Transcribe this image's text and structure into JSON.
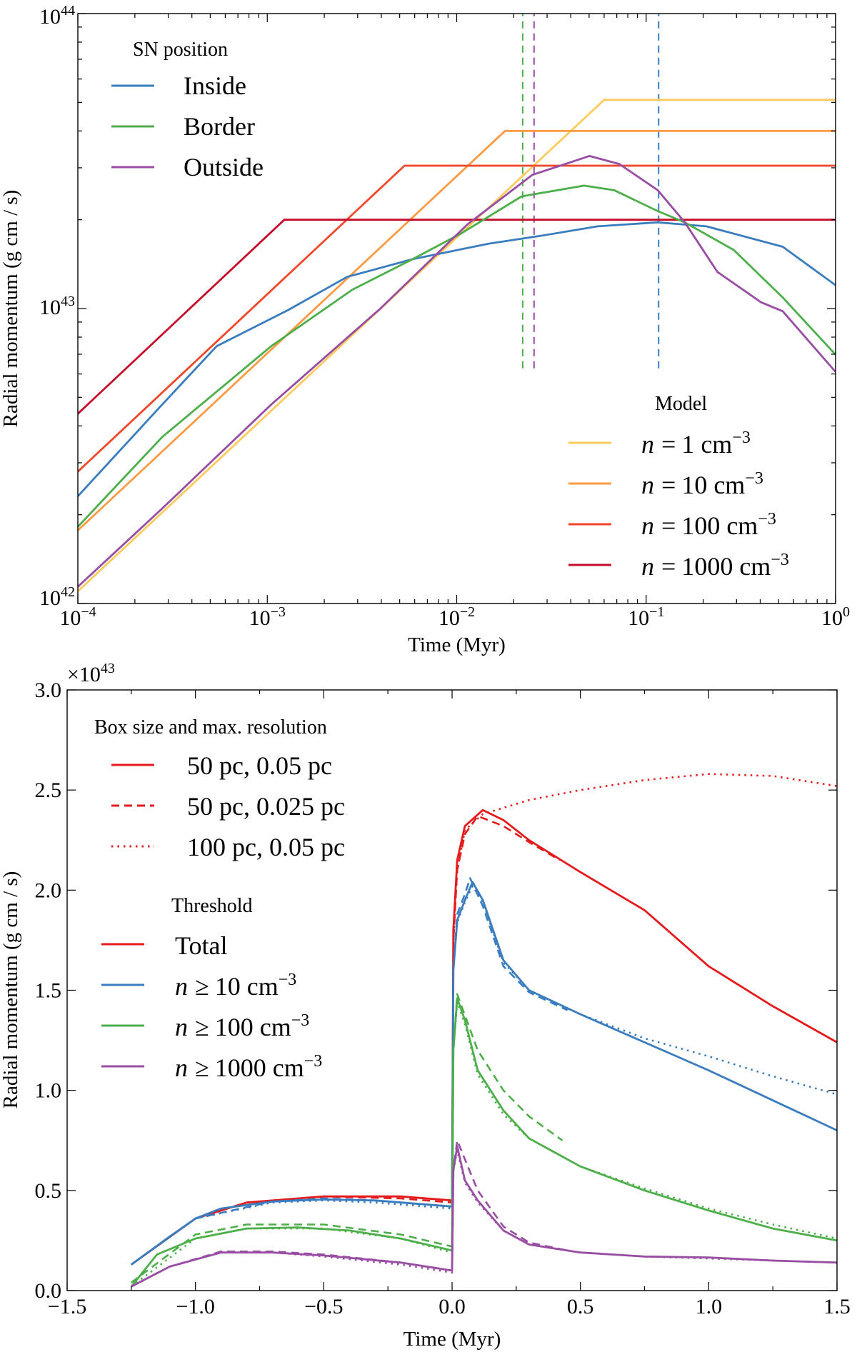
{
  "chart_data": [
    {
      "type": "line",
      "xscale": "log",
      "yscale": "log",
      "xlim": [
        0.0001,
        1
      ],
      "ylim": [
        1e+42,
        1e+44
      ],
      "xlabel": "Time (Myr)",
      "ylabel": "Radial momentum (g cm / s)",
      "x_ticks": [
        {
          "base": "10",
          "exp": "−4",
          "v": 0.0001
        },
        {
          "base": "10",
          "exp": "−3",
          "v": 0.001
        },
        {
          "base": "10",
          "exp": "−2",
          "v": 0.01
        },
        {
          "base": "10",
          "exp": "−1",
          "v": 0.1
        },
        {
          "base": "10",
          "exp": "0",
          "v": 1
        }
      ],
      "y_ticks": [
        {
          "base": "10",
          "exp": "42",
          "v": 1e+42
        },
        {
          "base": "10",
          "exp": "43",
          "v": 1e+43
        },
        {
          "base": "10",
          "exp": "44",
          "v": 1e+44
        }
      ],
      "grid": false,
      "legends": [
        {
          "title": "SN position",
          "placement": "top-left",
          "entries": [
            {
              "label": "Inside",
              "color": "#3a7dbf"
            },
            {
              "label": "Border",
              "color": "#4daf4a"
            },
            {
              "label": "Outside",
              "color": "#984ea3"
            }
          ]
        },
        {
          "title": "Model",
          "placement": "bottom-right",
          "entries": [
            {
              "var": "n",
              "rel": "=",
              "text": "1 cm",
              "sup": "−3",
              "color": "#fecb5c"
            },
            {
              "var": "n",
              "rel": "=",
              "text": "10 cm",
              "sup": "−3",
              "color": "#fd9a44"
            },
            {
              "var": "n",
              "rel": "=",
              "text": "100 cm",
              "sup": "−3",
              "color": "#f0472a"
            },
            {
              "var": "n",
              "rel": "=",
              "text": "1000 cm",
              "sup": "−3",
              "color": "#c50c2a"
            }
          ]
        }
      ],
      "series": [
        {
          "name": "n = 1 cm−3",
          "color": "#fecb5c",
          "style": "solid",
          "x": [
            0.0001,
            0.06,
            1
          ],
          "y": [
            1.1e+42,
            5.1e+43,
            5.1e+43
          ]
        },
        {
          "name": "n = 10 cm−3",
          "color": "#fd9a44",
          "style": "solid",
          "x": [
            0.0001,
            0.018,
            1
          ],
          "y": [
            1.77e+42,
            4e+43,
            4e+43
          ]
        },
        {
          "name": "n = 100 cm−3",
          "color": "#f0472a",
          "style": "solid",
          "x": [
            0.0001,
            0.0053,
            1
          ],
          "y": [
            2.8e+42,
            3.05e+43,
            3.05e+43
          ]
        },
        {
          "name": "n = 1000 cm−3",
          "color": "#c50c2a",
          "style": "solid",
          "x": [
            0.0001,
            0.00123,
            1
          ],
          "y": [
            4.4e+42,
            2e+43,
            2e+43
          ]
        },
        {
          "name": "Inside",
          "color": "#3a7dbf",
          "style": "solid",
          "x": [
            0.0001,
            0.000279,
            0.000541,
            0.00128,
            0.00264,
            0.00585,
            0.0148,
            0.0286,
            0.0555,
            0.115,
            0.208,
            0.526,
            1
          ],
          "y": [
            2.31e+42,
            4.73e+42,
            7.46e+42,
            9.86e+42,
            1.28e+43,
            1.47e+43,
            1.66e+43,
            1.77e+43,
            1.9e+43,
            1.96e+43,
            1.9e+43,
            1.62e+43,
            1.2e+43
          ]
        },
        {
          "name": "Border",
          "color": "#4daf4a",
          "style": "solid",
          "x": [
            0.0001,
            0.000279,
            0.00105,
            0.00282,
            0.00585,
            0.0106,
            0.022,
            0.047,
            0.0676,
            0.115,
            0.16,
            0.29,
            0.526,
            1
          ],
          "y": [
            1.82e+42,
            3.67e+42,
            7.46e+42,
            1.16e+43,
            1.47e+43,
            1.8e+43,
            2.4e+43,
            2.61e+43,
            2.52e+43,
            2.14e+43,
            1.96e+43,
            1.58e+43,
            1.09e+43,
            6.98e+42
          ]
        },
        {
          "name": "Outside",
          "color": "#984ea3",
          "style": "solid",
          "x": [
            0.0001,
            0.000279,
            0.00105,
            0.00394,
            0.0114,
            0.0251,
            0.0502,
            0.0721,
            0.115,
            0.16,
            0.238,
            0.404,
            0.526,
            1
          ],
          "y": [
            1.14e+42,
            2.1e+42,
            4.73e+42,
            9.98e+42,
            1.93e+43,
            2.84e+43,
            3.29e+43,
            3.09e+43,
            2.52e+43,
            1.96e+43,
            1.33e+43,
            1.05e+43,
            9.79e+42,
            6.1e+42
          ]
        }
      ],
      "vlines": [
        {
          "x": 0.0223,
          "color": "#4daf4a",
          "style": "dashed",
          "y_from": 6.27e+42,
          "y_to": 1e+44
        },
        {
          "x": 0.0256,
          "color": "#984ea3",
          "style": "dashed",
          "y_from": 6.27e+42,
          "y_to": 1e+44
        },
        {
          "x": 0.1164,
          "color": "#3a7dbf",
          "style": "dashed",
          "y_from": 6.27e+42,
          "y_to": 1e+44
        }
      ]
    },
    {
      "type": "line",
      "xlim": [
        -1.5,
        1.5
      ],
      "ylim": [
        0,
        3.0
      ],
      "xlabel": "Time (Myr)",
      "ylabel": "Radial momentum (g cm / s)",
      "y_multiplier": {
        "prefix": "×10",
        "exp": "43"
      },
      "x_ticks": [
        "−1.5",
        "−1.0",
        "−0.5",
        "0.0",
        "0.5",
        "1.0",
        "1.5"
      ],
      "x_tick_values": [
        -1.5,
        -1.0,
        -0.5,
        0,
        0.5,
        1.0,
        1.5
      ],
      "y_ticks": [
        "0.0",
        "0.5",
        "1.0",
        "1.5",
        "2.0",
        "2.5",
        "3.0"
      ],
      "y_tick_values": [
        0,
        0.5,
        1.0,
        1.5,
        2.0,
        2.5,
        3.0
      ],
      "grid": false,
      "legends": [
        {
          "title": "Box size and max. resolution",
          "placement": "top-left",
          "entries": [
            {
              "label": "50 pc, 0.05 pc",
              "style": "solid",
              "color": "#e41a1c"
            },
            {
              "label": "50 pc, 0.025 pc",
              "style": "dashed",
              "color": "#e41a1c"
            },
            {
              "label": "100 pc, 0.05 pc",
              "style": "dotted",
              "color": "#e41a1c"
            }
          ]
        },
        {
          "title": "Threshold",
          "placement": "left",
          "entries": [
            {
              "text": "Total",
              "color": "#e41a1c"
            },
            {
              "var": "n",
              "rel": "≥",
              "text": "10 cm",
              "sup": "−3",
              "color": "#3a7dbf"
            },
            {
              "var": "n",
              "rel": "≥",
              "text": "100 cm",
              "sup": "−3",
              "color": "#4daf4a"
            },
            {
              "var": "n",
              "rel": "≥",
              "text": "1000 cm",
              "sup": "−3",
              "color": "#984ea3"
            }
          ]
        }
      ],
      "series": [
        {
          "name": "Total, 50 pc, 0.05 pc",
          "color": "#e41a1c",
          "style": "solid",
          "x": [
            -1.25,
            -1.0,
            -0.8,
            -0.5,
            -0.2,
            0,
            0.005,
            0.02,
            0.05,
            0.12,
            0.2,
            0.3,
            0.5,
            0.75,
            1.0,
            1.25,
            1.5
          ],
          "y": [
            0.13,
            0.36,
            0.44,
            0.47,
            0.47,
            0.45,
            1.8,
            2.15,
            2.32,
            2.4,
            2.35,
            2.25,
            2.09,
            1.9,
            1.62,
            1.42,
            1.24
          ]
        },
        {
          "name": "Total, 50 pc, 0.025 pc",
          "color": "#e41a1c",
          "style": "dashed",
          "x": [
            -1.25,
            -1.0,
            -0.8,
            -0.5,
            -0.2,
            0,
            0.005,
            0.02,
            0.05,
            0.1,
            0.2,
            0.3,
            0.42
          ],
          "y": [
            0.13,
            0.36,
            0.44,
            0.47,
            0.46,
            0.44,
            1.75,
            2.1,
            2.28,
            2.37,
            2.32,
            2.24,
            2.15
          ]
        },
        {
          "name": "Total, 100 pc, 0.05 pc",
          "color": "#e41a1c",
          "style": "dotted",
          "x": [
            0.005,
            0.02,
            0.05,
            0.12,
            0.3,
            0.5,
            0.75,
            1.0,
            1.25,
            1.5
          ],
          "y": [
            1.75,
            2.1,
            2.3,
            2.38,
            2.45,
            2.5,
            2.55,
            2.58,
            2.57,
            2.52
          ]
        },
        {
          "name": "n ≥ 10 cm−3, 50 pc, 0.05 pc",
          "color": "#3a7dbf",
          "style": "solid",
          "x": [
            -1.25,
            -1.1,
            -1.0,
            -0.9,
            -0.7,
            -0.5,
            -0.3,
            0,
            0.005,
            0.02,
            0.05,
            0.08,
            0.12,
            0.2,
            0.3,
            0.5,
            0.75,
            1.0,
            1.25,
            1.5
          ],
          "y": [
            0.13,
            0.27,
            0.36,
            0.41,
            0.445,
            0.455,
            0.45,
            0.42,
            1.6,
            1.85,
            1.95,
            2.04,
            1.95,
            1.65,
            1.5,
            1.38,
            1.24,
            1.1,
            0.95,
            0.8
          ]
        },
        {
          "name": "n ≥ 10 cm−3, 50 pc, 0.025 pc",
          "color": "#3a7dbf",
          "style": "dashed",
          "x": [
            -1.25,
            -1.0,
            -0.7,
            -0.5,
            -0.3,
            0,
            0.005,
            0.02,
            0.05,
            0.07,
            0.12,
            0.2,
            0.3,
            0.45
          ],
          "y": [
            0.13,
            0.36,
            0.445,
            0.46,
            0.45,
            0.42,
            1.6,
            1.88,
            1.98,
            2.06,
            1.92,
            1.62,
            1.49,
            1.4
          ]
        },
        {
          "name": "n ≥ 10 cm−3, 100 pc, 0.05 pc",
          "color": "#3a7dbf",
          "style": "dotted",
          "x": [
            -1.25,
            -1.0,
            -0.7,
            -0.5,
            -0.3,
            0,
            0.005,
            0.02,
            0.05,
            0.08,
            0.12,
            0.2,
            0.3,
            0.5,
            0.75,
            1.0,
            1.25,
            1.5
          ],
          "y": [
            0.13,
            0.36,
            0.44,
            0.45,
            0.44,
            0.41,
            1.6,
            1.84,
            1.94,
            2.02,
            1.94,
            1.64,
            1.5,
            1.38,
            1.26,
            1.17,
            1.07,
            0.98
          ]
        },
        {
          "name": "n ≥ 100 cm−3, 50 pc, 0.05 pc",
          "color": "#4daf4a",
          "style": "solid",
          "x": [
            -1.25,
            -1.15,
            -1.0,
            -0.8,
            -0.6,
            -0.4,
            -0.2,
            0,
            0.005,
            0.02,
            0.05,
            0.1,
            0.2,
            0.3,
            0.5,
            0.75,
            1.0,
            1.25,
            1.5
          ],
          "y": [
            0.02,
            0.18,
            0.26,
            0.31,
            0.315,
            0.3,
            0.26,
            0.2,
            1.2,
            1.46,
            1.35,
            1.1,
            0.9,
            0.76,
            0.62,
            0.5,
            0.4,
            0.31,
            0.25
          ]
        },
        {
          "name": "n ≥ 100 cm−3, 50 pc, 0.025 pc",
          "color": "#4daf4a",
          "style": "dashed",
          "x": [
            -1.25,
            -1.0,
            -0.8,
            -0.5,
            -0.2,
            0,
            0.005,
            0.02,
            0.1,
            0.2,
            0.3,
            0.43
          ],
          "y": [
            0.04,
            0.28,
            0.33,
            0.33,
            0.28,
            0.22,
            1.2,
            1.48,
            1.2,
            1.0,
            0.87,
            0.75
          ]
        },
        {
          "name": "n ≥ 100 cm−3, 100 pc, 0.05 pc",
          "color": "#4daf4a",
          "style": "dotted",
          "x": [
            -1.25,
            -1.0,
            -0.8,
            -0.5,
            -0.2,
            0,
            0.005,
            0.02,
            0.05,
            0.1,
            0.2,
            0.3,
            0.5,
            0.75,
            1.0,
            1.25,
            1.5
          ],
          "y": [
            0.02,
            0.26,
            0.31,
            0.31,
            0.26,
            0.19,
            1.2,
            1.44,
            1.33,
            1.08,
            0.88,
            0.76,
            0.62,
            0.51,
            0.41,
            0.33,
            0.26
          ]
        },
        {
          "name": "n ≥ 1000 cm−3, 50 pc, 0.05 pc",
          "color": "#984ea3",
          "style": "solid",
          "x": [
            -1.25,
            -1.1,
            -0.9,
            -0.7,
            -0.5,
            -0.2,
            0,
            0.005,
            0.02,
            0.05,
            0.1,
            0.2,
            0.3,
            0.5,
            0.75,
            1.0,
            1.25,
            1.5
          ],
          "y": [
            0.02,
            0.12,
            0.19,
            0.19,
            0.175,
            0.14,
            0.1,
            0.6,
            0.72,
            0.55,
            0.45,
            0.3,
            0.23,
            0.19,
            0.17,
            0.165,
            0.15,
            0.14
          ]
        },
        {
          "name": "n ≥ 1000 cm−3, 50 pc, 0.025 pc",
          "color": "#984ea3",
          "style": "dashed",
          "x": [
            -1.25,
            -1.1,
            -0.9,
            -0.7,
            -0.5,
            -0.2,
            0,
            0.005,
            0.02,
            0.1,
            0.2,
            0.3,
            0.45
          ],
          "y": [
            0.02,
            0.12,
            0.195,
            0.195,
            0.18,
            0.14,
            0.1,
            0.6,
            0.75,
            0.5,
            0.32,
            0.24,
            0.2
          ]
        },
        {
          "name": "n ≥ 1000 cm−3, 100 pc, 0.05 pc",
          "color": "#984ea3",
          "style": "dotted",
          "x": [
            -1.25,
            -1.1,
            -0.9,
            -0.7,
            -0.5,
            -0.2,
            0,
            0.005,
            0.02,
            0.05,
            0.1,
            0.2,
            0.3,
            0.5,
            0.75,
            1.0,
            1.25,
            1.5
          ],
          "y": [
            0.02,
            0.12,
            0.19,
            0.19,
            0.17,
            0.13,
            0.09,
            0.6,
            0.7,
            0.54,
            0.44,
            0.3,
            0.23,
            0.19,
            0.17,
            0.16,
            0.15,
            0.14
          ]
        }
      ]
    }
  ]
}
